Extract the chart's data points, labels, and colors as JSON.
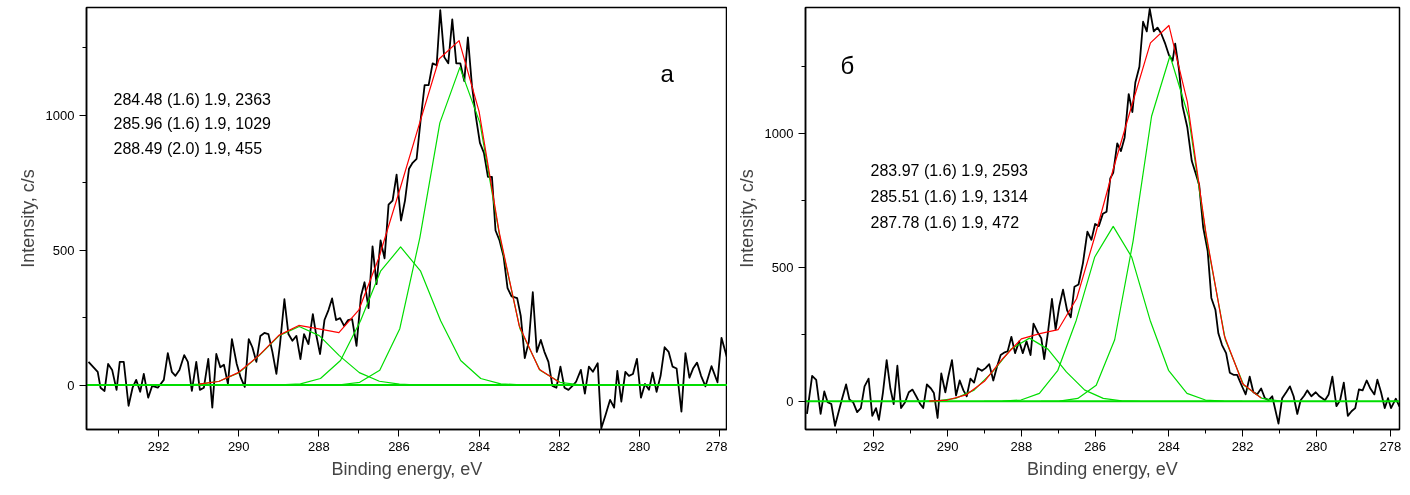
{
  "chart_data": [
    {
      "type": "line",
      "xlabel": "Binding energy, eV",
      "ylabel": "Intensity, c/s",
      "line_style": "solid",
      "annotations": [
        "284.48 (1.6) 1.9, 2363",
        "285.96 (1.6) 1.9, 1029",
        "288.49 (2.0) 1.9, 455",
        "а"
      ],
      "xlim": [
        293.8,
        277.8
      ],
      "ylim": [
        -165,
        1400
      ],
      "xticks": [
        {
          "value": 293,
          "label": null
        },
        292,
        {
          "value": 291,
          "label": null
        },
        290,
        {
          "value": 289,
          "label": null
        },
        288,
        {
          "value": 287,
          "label": null
        },
        286,
        {
          "value": 285,
          "label": null
        },
        284,
        {
          "value": 283,
          "label": null
        },
        282,
        {
          "value": 281,
          "label": null
        },
        280,
        {
          "value": 279,
          "label": null
        },
        278
      ],
      "yticks": [
        0,
        {
          "value": 250,
          "label": null
        },
        500,
        {
          "value": 750,
          "label": null
        },
        1000,
        {
          "value": 1250,
          "label": null
        }
      ],
      "series": [
        {
          "color": "#000000",
          "x": [
            293.75,
            293.52,
            293.45,
            293.35,
            293.26,
            293.16,
            293.05,
            292.97,
            292.87,
            292.75,
            292.65,
            292.56,
            292.46,
            292.37,
            292.26,
            292.16,
            292.02,
            291.87,
            291.77,
            291.67,
            291.58,
            291.48,
            291.36,
            291.27,
            291.17,
            291.06,
            290.97,
            290.87,
            290.76,
            290.66,
            290.56,
            290.46,
            290.37,
            290.27,
            290.17,
            290.05,
            289.95,
            289.85,
            289.75,
            289.66,
            289.56,
            289.46,
            289.36,
            289.26,
            289.16,
            289.06,
            288.97,
            288.86,
            288.76,
            288.66,
            288.56,
            288.46,
            288.37,
            288.26,
            288.15,
            288.07,
            287.97,
            287.86,
            287.76,
            287.67,
            287.57,
            287.47,
            287.37,
            287.27,
            287.17,
            287.06,
            286.95,
            286.86,
            286.76,
            286.66,
            286.56,
            286.46,
            286.36,
            286.26,
            286.16,
            286.06,
            285.95,
            285.85,
            285.75,
            285.66,
            285.56,
            285.46,
            285.36,
            285.26,
            285.16,
            285.06,
            284.97,
            284.87,
            284.77,
            284.67,
            284.57,
            284.47,
            284.37,
            284.28,
            284.18,
            284.08,
            283.98,
            283.88,
            283.78,
            283.68,
            283.59,
            283.49,
            283.39,
            283.29,
            283.19,
            283.05,
            282.96,
            282.86,
            282.76,
            282.66,
            282.56,
            282.46,
            282.37,
            282.27,
            282.17,
            282.07,
            281.97,
            281.87,
            281.77,
            281.67,
            281.58,
            281.46,
            281.36,
            281.26,
            281.16,
            281.04,
            280.95,
            280.85,
            280.73,
            280.63,
            280.55,
            280.45,
            280.35,
            280.26,
            280.16,
            280.06,
            279.96,
            279.86,
            279.76,
            279.67,
            279.57,
            279.47,
            279.37,
            279.27,
            279.17,
            279.07,
            278.95,
            278.85,
            278.75,
            278.66,
            278.56,
            278.46,
            278.35,
            278.2,
            278.05,
            277.95,
            277.8
          ],
          "values": [
            86,
            49,
            -10,
            -22,
            78,
            56,
            -18,
            86,
            86,
            -77,
            -10,
            19,
            -25,
            41,
            -47,
            -3,
            -10,
            19,
            118,
            49,
            34,
            56,
            111,
            86,
            -22,
            86,
            -18,
            -10,
            97,
            -84,
            115,
            66,
            75,
            4,
            170,
            78,
            27,
            -7,
            170,
            140,
            86,
            182,
            193,
            189,
            123,
            41,
            152,
            318,
            189,
            164,
            182,
            96,
            189,
            152,
            263,
            189,
            115,
            241,
            278,
            321,
            241,
            248,
            219,
            241,
            244,
            145,
            329,
            381,
            285,
            514,
            374,
            536,
            470,
            669,
            684,
            780,
            610,
            684,
            802,
            824,
            839,
            982,
            1112,
            1112,
            1193,
            1186,
            1390,
            1216,
            1193,
            1356,
            1193,
            1193,
            1127,
            1289,
            1112,
            994,
            898,
            861,
            772,
            772,
            573,
            536,
            477,
            359,
            329,
            322,
            256,
            100,
            160,
            344,
            123,
            167,
            123,
            86,
            -3,
            -10,
            68,
            -10,
            -18,
            -3,
            12,
            56,
            -32,
            68,
            49,
            81,
            -160,
            -114,
            -55,
            -84,
            52,
            -62,
            49,
            34,
            41,
            97,
            -47,
            4,
            -18,
            46,
            -25,
            34,
            140,
            123,
            68,
            61,
            -99,
            118,
            27,
            61,
            83,
            34,
            -5,
            70,
            10,
            175,
            95
          ]
        },
        {
          "color": "#00dd00",
          "x": [
            287.98,
            287.48,
            286.98,
            286.48,
            285.98,
            285.48,
            284.98,
            284.48,
            283.98,
            283.48,
            282.98,
            282.48,
            281.98,
            281.48,
            280.98
          ],
          "values": [
            0,
            1,
            10,
            55,
            209,
            546,
            972,
            1178,
            972,
            546,
            209,
            55,
            10,
            1,
            0
          ]
        },
        {
          "color": "#00dd00",
          "x": [
            289.46,
            288.96,
            288.46,
            287.96,
            287.46,
            286.96,
            286.46,
            285.96,
            285.46,
            284.96,
            284.46,
            283.96,
            283.46,
            282.96,
            282.46
          ],
          "values": [
            0,
            1,
            4,
            24,
            91,
            238,
            422,
            512,
            422,
            238,
            91,
            24,
            4,
            1,
            0
          ]
        },
        {
          "color": "#00dd00",
          "x": [
            291.49,
            290.99,
            290.49,
            289.99,
            289.49,
            288.99,
            288.49,
            287.99,
            287.49,
            286.99,
            286.49,
            285.99,
            285.49
          ],
          "values": [
            0,
            3,
            14,
            46,
            109,
            183,
            217,
            183,
            109,
            46,
            14,
            3,
            0
          ]
        },
        {
          "color": "#00dd00",
          "x": [
            293.8,
            277.8
          ],
          "values": [
            0,
            0
          ]
        },
        {
          "color": "#ff0000",
          "x": [
            291,
            290.5,
            290,
            289.5,
            289,
            288.5,
            288,
            287.5,
            287,
            286.5,
            286,
            285.5,
            285,
            284.5,
            284,
            283.5,
            283,
            282.5,
            282
          ],
          "values": [
            3,
            13,
            47,
            109,
            184,
            221,
            208,
            194,
            279,
            473,
            715,
            964,
            1209,
            1277,
            1014,
            568,
            220,
            58,
            10
          ]
        }
      ]
    },
    {
      "type": "line",
      "xlabel": "Binding energy, eV",
      "ylabel": "Intensity, c/s",
      "line_style": "solid",
      "annotations": [
        "283.97 (1.6) 1.9, 2593",
        "285.51 (1.6) 1.9, 1314",
        "287.78 (1.6) 1.9, 472",
        "б"
      ],
      "xlim": [
        293.85,
        277.75
      ],
      "ylim": [
        -105,
        1470
      ],
      "xticks": [
        {
          "value": 293,
          "label": null
        },
        292,
        {
          "value": 291,
          "label": null
        },
        290,
        {
          "value": 289,
          "label": null
        },
        288,
        {
          "value": 287,
          "label": null
        },
        286,
        {
          "value": 285,
          "label": null
        },
        284,
        {
          "value": 283,
          "label": null
        },
        282,
        {
          "value": 281,
          "label": null
        },
        280,
        {
          "value": 279,
          "label": null
        },
        278
      ],
      "yticks": [
        0,
        {
          "value": 250,
          "label": null
        },
        500,
        {
          "value": 750,
          "label": null
        },
        1000,
        {
          "value": 1250,
          "label": null
        }
      ],
      "series": [
        {
          "color": "#000000",
          "x": [
            293.81,
            293.67,
            293.56,
            293.44,
            293.34,
            293.25,
            293.15,
            293.05,
            292.87,
            292.75,
            292.66,
            292.56,
            292.45,
            292.35,
            292.25,
            292.14,
            292.04,
            291.94,
            291.86,
            291.75,
            291.65,
            291.55,
            291.46,
            291.36,
            291.26,
            291.15,
            291.05,
            290.95,
            290.85,
            290.74,
            290.66,
            290.56,
            290.45,
            290.37,
            290.27,
            290.17,
            290.06,
            289.98,
            289.88,
            289.77,
            289.67,
            289.57,
            289.48,
            289.38,
            289.28,
            289.18,
            289.07,
            288.97,
            288.87,
            288.76,
            288.66,
            288.56,
            288.45,
            288.37,
            288.27,
            288.17,
            288.06,
            287.96,
            287.86,
            287.75,
            287.67,
            287.57,
            287.46,
            287.38,
            287.28,
            287.17,
            287.07,
            286.97,
            286.87,
            286.76,
            286.66,
            286.56,
            286.45,
            286.33,
            286.21,
            286.1,
            286.0,
            285.9,
            285.79,
            285.69,
            285.59,
            285.51,
            285.4,
            285.3,
            285.2,
            285.09,
            284.99,
            284.91,
            284.8,
            284.7,
            284.6,
            284.52,
            284.41,
            284.31,
            284.21,
            284.1,
            284.0,
            283.9,
            283.83,
            283.73,
            283.63,
            283.5,
            283.38,
            283.28,
            283.18,
            283.07,
            282.95,
            282.85,
            282.74,
            282.66,
            282.56,
            282.45,
            282.35,
            282.25,
            282.15,
            282.04,
            281.92,
            281.81,
            281.71,
            281.61,
            281.5,
            281.4,
            281.3,
            281.2,
            281.03,
            280.93,
            280.82,
            280.72,
            280.62,
            280.52,
            280.43,
            280.33,
            280.25,
            280.14,
            280.02,
            279.92,
            279.77,
            279.67,
            279.57,
            279.46,
            279.36,
            279.26,
            279.15,
            279.05,
            278.95,
            278.85,
            278.75,
            278.64,
            278.54,
            278.43,
            278.35,
            278.25,
            278.15,
            278.06,
            277.98,
            277.85,
            277.75
          ],
          "values": [
            -47,
            95,
            80,
            -47,
            37,
            -3,
            -10,
            -91,
            4,
            63,
            7,
            -3,
            -40,
            -25,
            56,
            85,
            -54,
            -25,
            -69,
            34,
            154,
            48,
            -10,
            133,
            -25,
            -3,
            34,
            44,
            19,
            -10,
            -25,
            63,
            48,
            31,
            -62,
            104,
            34,
            92,
            154,
            22,
            78,
            41,
            19,
            85,
            70,
            124,
            114,
            124,
            139,
            78,
            129,
            173,
            183,
            187,
            241,
            180,
            224,
            180,
            224,
            173,
            290,
            261,
            236,
            158,
            256,
            382,
            268,
            356,
            417,
            340,
            314,
            428,
            436,
            516,
            633,
            603,
            662,
            654,
            700,
            708,
            832,
            853,
            963,
            934,
            985,
            1147,
            1080,
            1190,
            1249,
            1417,
            1381,
            1465,
            1381,
            1395,
            1373,
            1335,
            1293,
            1271,
            1335,
            1241,
            1102,
            1022,
            897,
            853,
            808,
            649,
            562,
            386,
            342,
            254,
            210,
            180,
            107,
            99,
            99,
            63,
            26,
            92,
            34,
            26,
            48,
            12,
            4,
            19,
            -83,
            12,
            34,
            56,
            19,
            -47,
            4,
            22,
            41,
            19,
            34,
            19,
            4,
            26,
            92,
            -18,
            4,
            70,
            -54,
            -37,
            -25,
            45,
            41,
            78,
            48,
            26,
            81,
            34,
            -25,
            12,
            -25,
            10,
            -20
          ]
        },
        {
          "color": "#00dd00",
          "x": [
            287.47,
            286.97,
            286.47,
            285.97,
            285.47,
            284.97,
            284.47,
            283.97,
            283.47,
            282.97,
            282.47,
            281.97,
            281.47,
            280.97,
            280.47
          ],
          "values": [
            0,
            1,
            11,
            60,
            230,
            599,
            1064,
            1290,
            1064,
            599,
            230,
            60,
            11,
            1,
            0
          ]
        },
        {
          "color": "#00dd00",
          "x": [
            289.01,
            288.51,
            288.01,
            287.51,
            287.01,
            286.51,
            286.01,
            285.51,
            285.01,
            284.51,
            284.01,
            283.51,
            283.01,
            282.51,
            282.01
          ],
          "values": [
            0,
            1,
            5,
            30,
            116,
            303,
            539,
            653,
            539,
            303,
            116,
            30,
            5,
            1,
            0
          ]
        },
        {
          "color": "#00dd00",
          "x": [
            291.28,
            290.78,
            290.28,
            289.78,
            289.28,
            288.78,
            288.28,
            287.78,
            287.28,
            286.78,
            286.28,
            285.78,
            285.28,
            284.78
          ],
          "values": [
            0,
            0,
            2,
            11,
            42,
            110,
            195,
            236,
            195,
            110,
            42,
            11,
            2,
            0
          ]
        },
        {
          "color": "#00dd00",
          "x": [
            293.85,
            277.75
          ],
          "values": [
            0,
            0
          ]
        },
        {
          "color": "#ff0000",
          "x": [
            290.5,
            290,
            289.5,
            289,
            288.5,
            288,
            287.5,
            287,
            286.5,
            286,
            285.5,
            285,
            284.5,
            284,
            283.5,
            283,
            282.5,
            282,
            281.5
          ],
          "values": [
            1,
            5,
            24,
            75,
            160,
            233,
            253,
            268,
            384,
            619,
            871,
            1107,
            1338,
            1403,
            1118,
            631,
            246,
            66,
            12
          ]
        }
      ]
    }
  ]
}
